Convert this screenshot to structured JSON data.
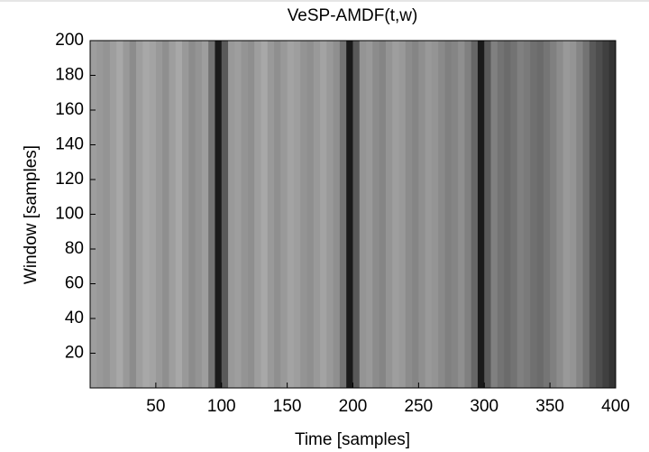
{
  "chart_data": {
    "type": "heatmap",
    "title": "VeSP-AMDF(t,w)",
    "xlabel": "Time [samples]",
    "ylabel": "Window [samples]",
    "xlim": [
      0,
      400
    ],
    "ylim": [
      0,
      200
    ],
    "xticks": [
      50,
      100,
      150,
      200,
      250,
      300,
      350,
      400
    ],
    "yticks": [
      20,
      40,
      60,
      80,
      100,
      120,
      140,
      160,
      180,
      200
    ],
    "bin_width": 5,
    "x": [
      2.5,
      7.5,
      12.5,
      17.5,
      22.5,
      27.5,
      32.5,
      37.5,
      42.5,
      47.5,
      52.5,
      57.5,
      62.5,
      67.5,
      72.5,
      77.5,
      82.5,
      87.5,
      92.5,
      97.5,
      102.5,
      107.5,
      112.5,
      117.5,
      122.5,
      127.5,
      132.5,
      137.5,
      142.5,
      147.5,
      152.5,
      157.5,
      162.5,
      167.5,
      172.5,
      177.5,
      182.5,
      187.5,
      192.5,
      197.5,
      202.5,
      207.5,
      212.5,
      217.5,
      222.5,
      227.5,
      232.5,
      237.5,
      242.5,
      247.5,
      252.5,
      257.5,
      262.5,
      267.5,
      272.5,
      277.5,
      282.5,
      287.5,
      292.5,
      297.5,
      302.5,
      307.5,
      312.5,
      317.5,
      322.5,
      327.5,
      332.5,
      337.5,
      342.5,
      347.5,
      352.5,
      357.5,
      362.5,
      367.5,
      372.5,
      377.5,
      382.5,
      387.5,
      392.5,
      397.5
    ],
    "values": [
      0.62,
      0.6,
      0.58,
      0.62,
      0.66,
      0.6,
      0.55,
      0.62,
      0.66,
      0.64,
      0.6,
      0.56,
      0.62,
      0.66,
      0.6,
      0.55,
      0.58,
      0.62,
      0.45,
      0.1,
      0.35,
      0.6,
      0.62,
      0.58,
      0.56,
      0.62,
      0.66,
      0.6,
      0.56,
      0.6,
      0.64,
      0.62,
      0.58,
      0.56,
      0.6,
      0.64,
      0.6,
      0.56,
      0.45,
      0.1,
      0.35,
      0.58,
      0.6,
      0.55,
      0.52,
      0.58,
      0.62,
      0.6,
      0.55,
      0.52,
      0.56,
      0.6,
      0.58,
      0.54,
      0.5,
      0.52,
      0.56,
      0.5,
      0.4,
      0.1,
      0.35,
      0.5,
      0.45,
      0.42,
      0.45,
      0.5,
      0.48,
      0.44,
      0.42,
      0.46,
      0.5,
      0.55,
      0.6,
      0.58,
      0.52,
      0.45,
      0.35,
      0.3,
      0.25,
      0.2
    ]
  }
}
